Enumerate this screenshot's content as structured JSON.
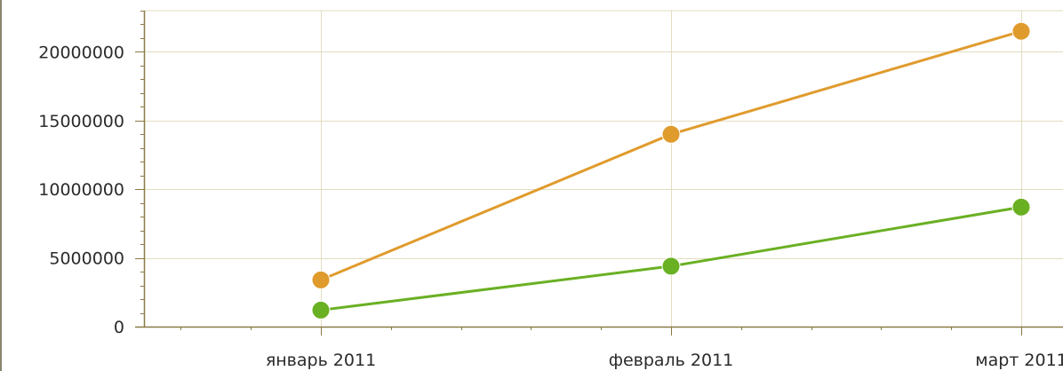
{
  "chart_data": {
    "type": "line",
    "categories": [
      "январь 2011",
      "февраль 2011",
      "март 2011"
    ],
    "series": [
      {
        "values": [
          3400000,
          14000000,
          21500000
        ],
        "color": "#e09b2d"
      },
      {
        "values": [
          1200000,
          4400000,
          8700000
        ],
        "color": "#6ab023"
      }
    ],
    "y_ticks": [
      0,
      5000000,
      10000000,
      15000000,
      20000000
    ],
    "y_tick_labels": [
      "0",
      "5000000",
      "10000000",
      "15000000",
      "20000000"
    ],
    "ylim": [
      0,
      23000000
    ],
    "grid": true,
    "title": "",
    "xlabel": "",
    "ylabel": "",
    "colors": {
      "grid": "#e3dcc0",
      "axis": "#8a7a45",
      "border": "#8a8470"
    }
  }
}
